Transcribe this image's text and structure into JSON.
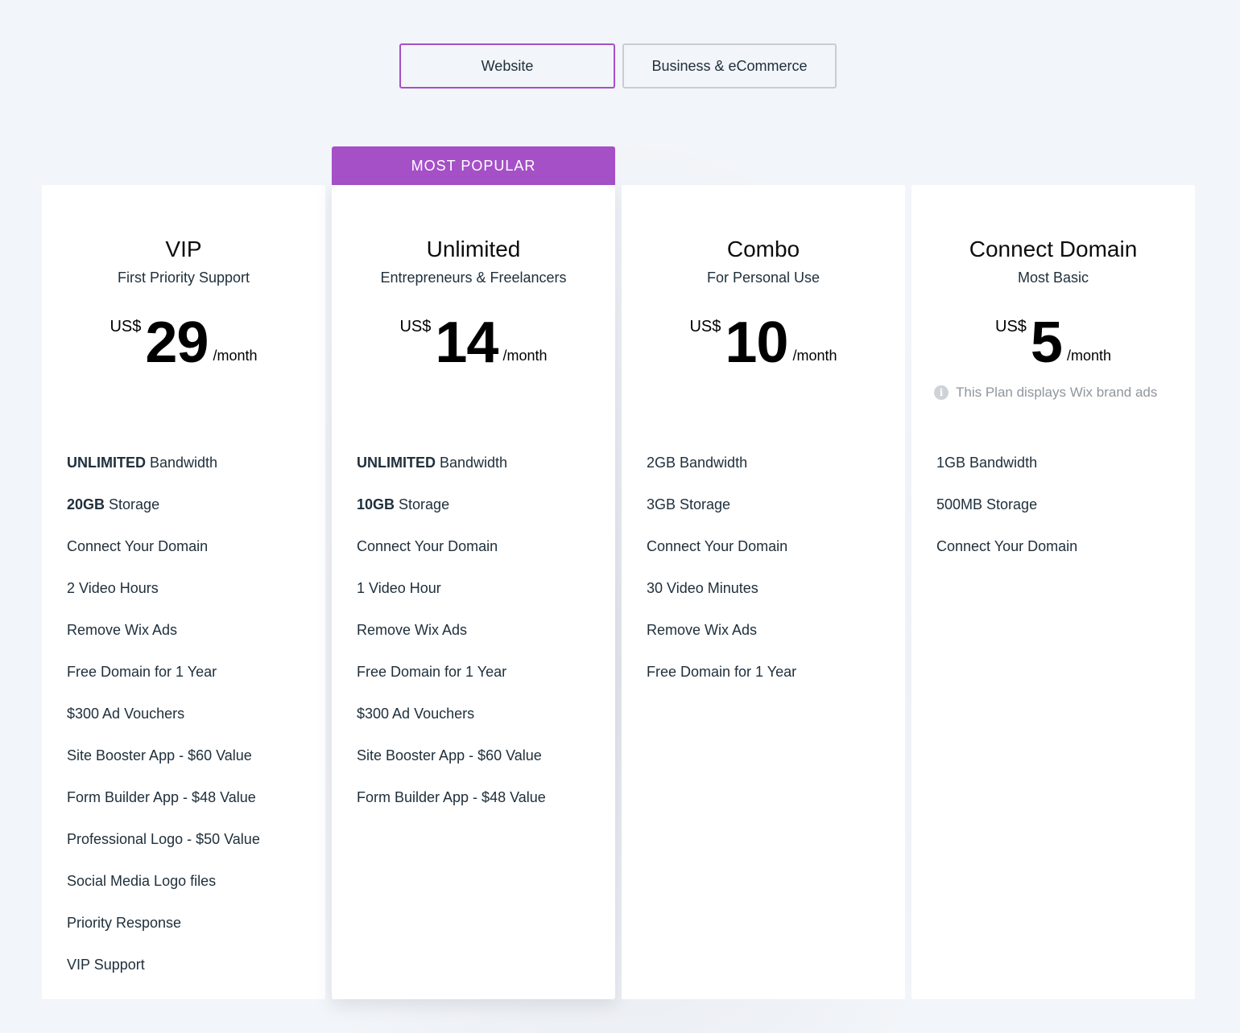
{
  "tabs": [
    {
      "label": "Website",
      "active": true
    },
    {
      "label": "Business & eCommerce",
      "active": false
    }
  ],
  "colors": {
    "accent": "#a550c7",
    "background": "#f2f5f9",
    "card": "#ffffff",
    "text": "#20303c",
    "muted": "#8f969d"
  },
  "plans": [
    {
      "name": "VIP",
      "tagline": "First Priority Support",
      "currency": "US$",
      "price": "29",
      "period": "/month",
      "features": [
        {
          "bold": "UNLIMITED",
          "text": " Bandwidth"
        },
        {
          "bold": "20GB",
          "text": " Storage"
        },
        {
          "bold": "",
          "text": "Connect Your Domain"
        },
        {
          "bold": "",
          "text": "2 Video Hours"
        },
        {
          "bold": "",
          "text": "Remove Wix Ads"
        },
        {
          "bold": "",
          "text": "Free Domain for 1 Year"
        },
        {
          "bold": "",
          "text": "$300 Ad Vouchers"
        },
        {
          "bold": "",
          "text": "Site Booster App - $60 Value"
        },
        {
          "bold": "",
          "text": "Form Builder App - $48 Value"
        },
        {
          "bold": "",
          "text": "Professional Logo - $50 Value"
        },
        {
          "bold": "",
          "text": "Social Media Logo files"
        },
        {
          "bold": "",
          "text": "Priority Response"
        },
        {
          "bold": "",
          "text": "VIP Support"
        }
      ]
    },
    {
      "name": "Unlimited",
      "tagline": "Entrepreneurs & Freelancers",
      "ribbon": "MOST POPULAR",
      "currency": "US$",
      "price": "14",
      "period": "/month",
      "features": [
        {
          "bold": "UNLIMITED",
          "text": " Bandwidth"
        },
        {
          "bold": "10GB",
          "text": " Storage"
        },
        {
          "bold": "",
          "text": "Connect Your Domain"
        },
        {
          "bold": "",
          "text": "1 Video Hour"
        },
        {
          "bold": "",
          "text": "Remove Wix Ads"
        },
        {
          "bold": "",
          "text": "Free Domain for 1 Year"
        },
        {
          "bold": "",
          "text": "$300 Ad Vouchers"
        },
        {
          "bold": "",
          "text": "Site Booster App - $60 Value"
        },
        {
          "bold": "",
          "text": "Form Builder App - $48 Value"
        }
      ]
    },
    {
      "name": "Combo",
      "tagline": "For Personal Use",
      "currency": "US$",
      "price": "10",
      "period": "/month",
      "features": [
        {
          "bold": "",
          "text": "2GB Bandwidth"
        },
        {
          "bold": "",
          "text": "3GB Storage"
        },
        {
          "bold": "",
          "text": "Connect Your Domain"
        },
        {
          "bold": "",
          "text": "30 Video Minutes"
        },
        {
          "bold": "",
          "text": "Remove Wix Ads"
        },
        {
          "bold": "",
          "text": "Free Domain for 1 Year"
        }
      ]
    },
    {
      "name": "Connect Domain",
      "tagline": "Most Basic",
      "currency": "US$",
      "price": "5",
      "period": "/month",
      "note_icon": "info-icon",
      "note": "This Plan displays Wix brand ads",
      "features": [
        {
          "bold": "",
          "text": "1GB Bandwidth"
        },
        {
          "bold": "",
          "text": "500MB Storage"
        },
        {
          "bold": "",
          "text": "Connect Your Domain"
        }
      ]
    }
  ]
}
